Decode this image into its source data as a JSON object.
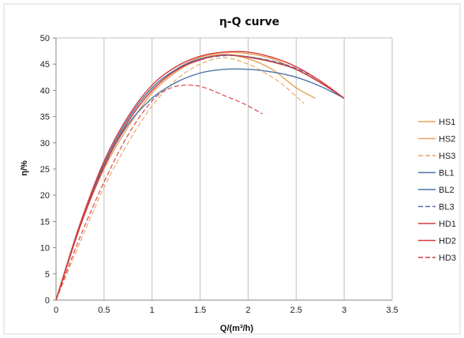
{
  "chart_data": {
    "type": "line",
    "title": "η-Q  curve",
    "xlabel": "Q/(m³/h)",
    "ylabel": "η/%",
    "xlim": [
      0,
      3.5
    ],
    "ylim": [
      0,
      50
    ],
    "xticks": [
      "0",
      "0.5",
      "1",
      "1.5",
      "2",
      "2.5",
      "3",
      "3.5"
    ],
    "yticks": [
      "0",
      "5",
      "10",
      "15",
      "20",
      "25",
      "30",
      "35",
      "40",
      "45",
      "50"
    ],
    "grid": "vertical",
    "legend_position": "right",
    "series": [
      {
        "name": "HS1",
        "color": "#e8a35a",
        "dash": "none",
        "x": [
          0,
          0.25,
          0.5,
          0.75,
          1.0,
          1.25,
          1.5,
          1.75,
          2.0,
          2.25,
          2.5,
          2.7
        ],
        "y": [
          0,
          14,
          25,
          33,
          39.5,
          43.5,
          46,
          46.8,
          46,
          44,
          40.5,
          38.5
        ]
      },
      {
        "name": "HS2",
        "color": "#e8a35a",
        "dash": "none",
        "x": [
          0,
          0.25,
          0.5,
          0.75,
          1.0,
          1.25,
          1.5,
          1.75,
          2.0,
          2.25,
          2.5,
          2.75,
          3.0
        ],
        "y": [
          0,
          14,
          25.5,
          34,
          40,
          44,
          46.3,
          47.2,
          47,
          46,
          44,
          41.5,
          38.5
        ]
      },
      {
        "name": "HS3",
        "color": "#e8a35a",
        "dash": "6,3",
        "x": [
          0,
          0.25,
          0.5,
          0.75,
          1.0,
          1.25,
          1.5,
          1.75,
          2.0,
          2.25,
          2.4,
          2.58
        ],
        "y": [
          0,
          11,
          21.5,
          30,
          37,
          42,
          45,
          46.2,
          45,
          42.5,
          40.5,
          37.5
        ]
      },
      {
        "name": "BL1",
        "color": "#4a74a8",
        "dash": "none",
        "x": [
          0,
          0.25,
          0.5,
          0.75,
          1.0,
          1.25,
          1.5,
          1.75,
          2.0,
          2.25,
          2.5,
          2.75,
          3.0
        ],
        "y": [
          0,
          14,
          25.5,
          33.5,
          38.5,
          41.5,
          43.3,
          44,
          44,
          43.5,
          42.5,
          40.8,
          38.5
        ]
      },
      {
        "name": "BL2",
        "color": "#4a74a8",
        "dash": "none",
        "x": [
          0,
          0.25,
          0.5,
          0.75,
          1.0,
          1.25,
          1.5,
          1.75,
          2.0,
          2.25,
          2.5,
          2.75,
          3.0
        ],
        "y": [
          0,
          14.5,
          26,
          34.5,
          40.5,
          44,
          46,
          46.7,
          46.4,
          45.5,
          44,
          41.5,
          38.5
        ]
      },
      {
        "name": "BL3",
        "color": "#4a74a8",
        "dash": "6,3",
        "x": [
          0,
          0.25,
          0.5,
          0.75,
          1.0,
          1.25,
          1.5,
          1.75,
          2.0,
          2.25,
          2.5,
          2.75,
          3.0
        ],
        "y": [
          0,
          14,
          25.3,
          34,
          40,
          43.8,
          45.8,
          46.6,
          46.4,
          45.6,
          44.2,
          41.8,
          38.5
        ]
      },
      {
        "name": "HD1",
        "color": "#d63b3b",
        "dash": "none",
        "x": [
          0,
          0.25,
          0.5,
          0.75,
          1.0,
          1.25,
          1.5,
          1.75,
          2.0,
          2.25,
          2.5,
          2.75,
          3.0
        ],
        "y": [
          0,
          14.5,
          26.5,
          35,
          41,
          44.5,
          46.5,
          47.3,
          47.3,
          46.3,
          44.5,
          41.8,
          38.5
        ]
      },
      {
        "name": "HD2",
        "color": "#d63b3b",
        "dash": "none",
        "x": [
          0,
          0.25,
          0.5,
          0.75,
          1.0,
          1.25,
          1.5,
          1.75,
          2.0,
          2.25,
          2.5,
          2.75,
          3.0
        ],
        "y": [
          0,
          14,
          25.5,
          34,
          40,
          43.8,
          45.8,
          46.8,
          46.3,
          45.4,
          44,
          41.5,
          38.5
        ]
      },
      {
        "name": "HD3",
        "color": "#d63b3b",
        "dash": "6,3",
        "x": [
          0,
          0.25,
          0.5,
          0.75,
          1.0,
          1.2,
          1.4,
          1.55,
          1.75,
          1.95,
          2.15
        ],
        "y": [
          0,
          12,
          22.5,
          31.5,
          38,
          40.5,
          41,
          40.5,
          39,
          37.5,
          35.5
        ]
      }
    ]
  }
}
